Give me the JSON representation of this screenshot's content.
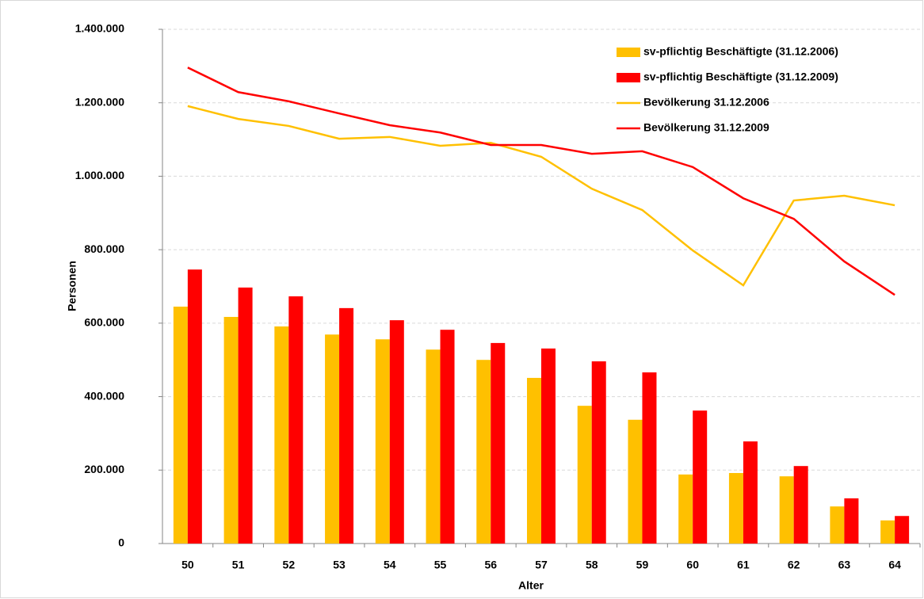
{
  "chart_data": {
    "type": "bar",
    "x_label": "Alter",
    "y_label": "Personen",
    "categories": [
      "50",
      "51",
      "52",
      "53",
      "54",
      "55",
      "56",
      "57",
      "58",
      "59",
      "60",
      "61",
      "62",
      "63",
      "64"
    ],
    "series": [
      {
        "name": "sv-pflichtig Beschäftigte (31.12.2006)",
        "type": "bar",
        "color": "#FFC000",
        "values": [
          645000,
          617000,
          591000,
          569000,
          556000,
          528000,
          500000,
          451000,
          375000,
          337000,
          188000,
          192000,
          183000,
          101000,
          63000
        ]
      },
      {
        "name": "sv-pflichtig Beschäftigte (31.12.2009)",
        "type": "bar",
        "color": "#FF0000",
        "values": [
          746000,
          697000,
          673000,
          641000,
          608000,
          582000,
          546000,
          531000,
          496000,
          466000,
          362000,
          278000,
          211000,
          123000,
          75000
        ]
      },
      {
        "name": "Bevölkerung 31.12.2006",
        "type": "line",
        "color": "#FFC000",
        "values": [
          1191000,
          1156000,
          1137000,
          1102000,
          1107000,
          1083000,
          1091000,
          1053000,
          966000,
          908000,
          798000,
          703000,
          934000,
          947000,
          921000
        ]
      },
      {
        "name": "Bevölkerung 31.12.2009",
        "type": "line",
        "color": "#FF0000",
        "values": [
          1296000,
          1229000,
          1204000,
          1171000,
          1139000,
          1119000,
          1085000,
          1085000,
          1061000,
          1068000,
          1025000,
          940000,
          884000,
          768000,
          677000
        ]
      }
    ],
    "ylim": [
      0,
      1400000
    ],
    "yticks": [
      0,
      {
        "value": 200000,
        "label": "200.000"
      },
      {
        "value": 400000,
        "label": "400.000"
      },
      {
        "value": 600000,
        "label": "600.000"
      },
      {
        "value": 800000,
        "label": "800.000"
      },
      {
        "value": 1000000,
        "label": "1.000.000"
      },
      {
        "value": 1200000,
        "label": "1.200.000"
      },
      {
        "value": 1400000,
        "label": "1.400.000"
      }
    ],
    "grid": true,
    "legend": "top-right"
  }
}
